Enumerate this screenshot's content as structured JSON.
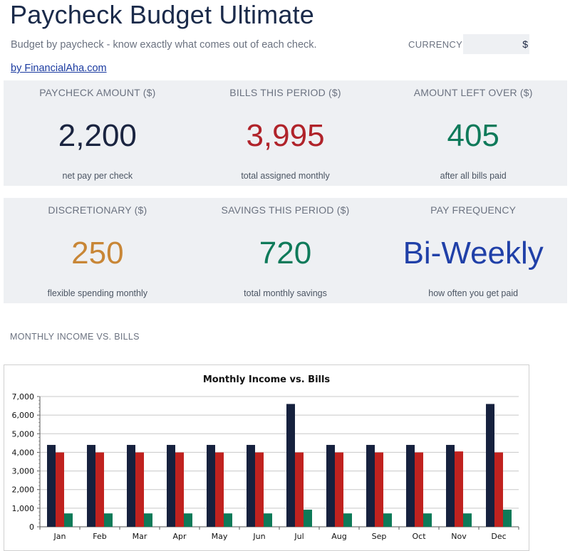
{
  "header": {
    "title": "Paycheck Budget Ultimate",
    "subtitle": "Budget by paycheck - know exactly what comes out of each check.",
    "byline": "by FinancialAha.com",
    "currency_label": "CURRENCY",
    "currency_value": "$"
  },
  "cards": [
    {
      "label": "PAYCHECK AMOUNT ($)",
      "value": "2,200",
      "sub": "net pay per check",
      "color": "#1a2440"
    },
    {
      "label": "BILLS THIS PERIOD ($)",
      "value": "3,995",
      "sub": "total assigned monthly",
      "color": "#b0232a"
    },
    {
      "label": "AMOUNT LEFT OVER ($)",
      "value": "405",
      "sub": "after all bills paid",
      "color": "#0f7a5a"
    },
    {
      "label": "DISCRETIONARY ($)",
      "value": "250",
      "sub": "flexible spending monthly",
      "color": "#c88636"
    },
    {
      "label": "SAVINGS THIS PERIOD ($)",
      "value": "720",
      "sub": "total monthly savings",
      "color": "#0f7a5a"
    },
    {
      "label": "PAY FREQUENCY",
      "value": "Bi-Weekly",
      "sub": "how often you get paid",
      "color": "#2040a8"
    }
  ],
  "section": {
    "chart_label": "MONTHLY INCOME VS. BILLS"
  },
  "chart_data": {
    "type": "bar",
    "title": "Monthly Income vs. Bills",
    "categories": [
      "Jan",
      "Feb",
      "Mar",
      "Apr",
      "May",
      "Jun",
      "Jul",
      "Aug",
      "Sep",
      "Oct",
      "Nov",
      "Dec"
    ],
    "series": [
      {
        "values": [
          4400,
          4400,
          4400,
          4400,
          4400,
          4400,
          6600,
          4400,
          4400,
          4400,
          4400,
          6600
        ],
        "color": "#16213e"
      },
      {
        "values": [
          3995,
          3995,
          3995,
          3995,
          3995,
          3995,
          3995,
          3995,
          3995,
          3995,
          4050,
          3995
        ],
        "color": "#c0221f"
      },
      {
        "values": [
          720,
          720,
          720,
          720,
          720,
          720,
          920,
          720,
          720,
          720,
          720,
          920
        ],
        "color": "#0e7a58"
      }
    ],
    "ylim": [
      0,
      7000
    ],
    "yticks": [
      0,
      1000,
      2000,
      3000,
      4000,
      5000,
      6000,
      7000
    ],
    "ytick_labels": [
      "0",
      "1,000",
      "2,000",
      "3,000",
      "4,000",
      "5,000",
      "6,000",
      "7,000"
    ],
    "grid": true,
    "xlabel": "",
    "ylabel": ""
  }
}
